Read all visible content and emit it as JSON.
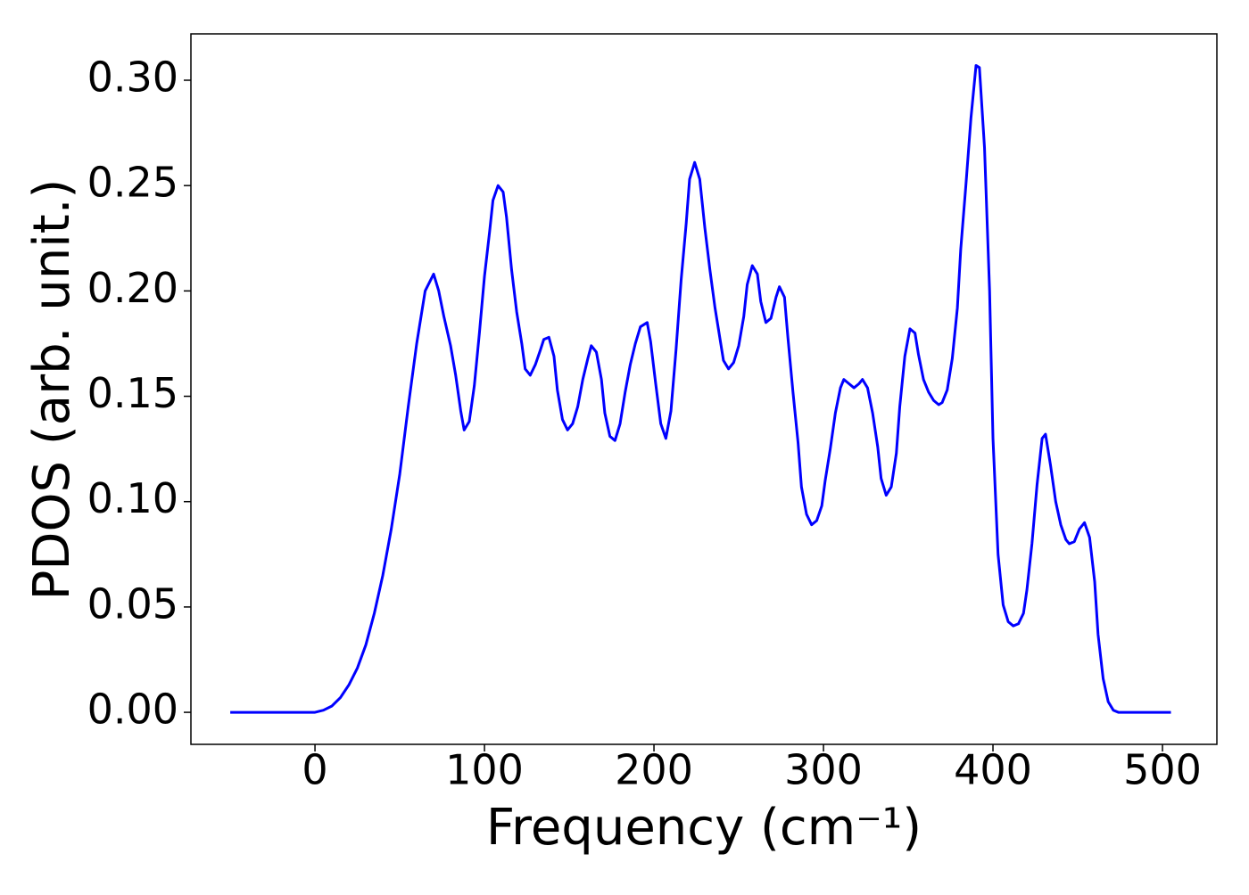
{
  "chart_data": {
    "type": "line",
    "xlabel": "Frequency (cm⁻¹)",
    "ylabel": "PDOS (arb. unit.)",
    "xlim": [
      -73.2,
      532.1
    ],
    "ylim": [
      -0.0152,
      0.322
    ],
    "xticks": [
      0,
      100,
      200,
      300,
      400,
      500
    ],
    "yticks": [
      {
        "value": 0,
        "label": "0.00"
      },
      0.05,
      {
        "value": 0.1,
        "label": "0.10"
      },
      0.15,
      {
        "value": 0.2,
        "label": "0.20"
      },
      0.25,
      {
        "value": 0.3,
        "label": "0.30"
      }
    ],
    "grid": false,
    "series": [
      {
        "color": "#0000ff",
        "x": [
          -50,
          0,
          5,
          10,
          15,
          20,
          25,
          30,
          35,
          40,
          45,
          50,
          55,
          60,
          65,
          70,
          73,
          76,
          80,
          83,
          86,
          88,
          91,
          94,
          97,
          100,
          103,
          105,
          108,
          111,
          113,
          116,
          119,
          122,
          124,
          127,
          130,
          133,
          135,
          138,
          141,
          143,
          146,
          149,
          152,
          155,
          158,
          161,
          163,
          166,
          169,
          171,
          174,
          177,
          180,
          183,
          186,
          189,
          192,
          196,
          198,
          201,
          204,
          207,
          210,
          213,
          216,
          219,
          221,
          224,
          227,
          230,
          233,
          236,
          239,
          241,
          244,
          247,
          250,
          253,
          255,
          258,
          261,
          263,
          266,
          269,
          272,
          274,
          277,
          279,
          282,
          285,
          287,
          290,
          293,
          296,
          299,
          301,
          304,
          307,
          310,
          312,
          315,
          318,
          321,
          323,
          326,
          329,
          332,
          334,
          337,
          340,
          343,
          345,
          348,
          351,
          354,
          356,
          359,
          362,
          365,
          368,
          370,
          373,
          376,
          379,
          381,
          384,
          387,
          390,
          392,
          395,
          398,
          400,
          403,
          406,
          409,
          412,
          415,
          418,
          420,
          423,
          426,
          429,
          431,
          434,
          437,
          440,
          443,
          445,
          448,
          451,
          454,
          457,
          460,
          462,
          465,
          468,
          471,
          474,
          505
        ],
        "values": [
          0,
          0,
          0.001,
          0.003,
          0.007,
          0.013,
          0.021,
          0.032,
          0.047,
          0.065,
          0.087,
          0.113,
          0.145,
          0.175,
          0.2,
          0.208,
          0.2,
          0.188,
          0.174,
          0.16,
          0.143,
          0.134,
          0.138,
          0.155,
          0.18,
          0.207,
          0.228,
          0.243,
          0.25,
          0.247,
          0.235,
          0.21,
          0.19,
          0.175,
          0.163,
          0.16,
          0.165,
          0.172,
          0.177,
          0.178,
          0.169,
          0.153,
          0.139,
          0.134,
          0.137,
          0.145,
          0.158,
          0.168,
          0.174,
          0.171,
          0.158,
          0.142,
          0.131,
          0.129,
          0.137,
          0.152,
          0.165,
          0.175,
          0.183,
          0.185,
          0.176,
          0.156,
          0.137,
          0.13,
          0.143,
          0.172,
          0.205,
          0.232,
          0.253,
          0.261,
          0.253,
          0.23,
          0.21,
          0.192,
          0.177,
          0.167,
          0.163,
          0.166,
          0.174,
          0.188,
          0.203,
          0.212,
          0.208,
          0.195,
          0.185,
          0.187,
          0.197,
          0.202,
          0.197,
          0.178,
          0.152,
          0.128,
          0.107,
          0.094,
          0.089,
          0.091,
          0.098,
          0.11,
          0.125,
          0.142,
          0.154,
          0.158,
          0.156,
          0.154,
          0.156,
          0.158,
          0.154,
          0.142,
          0.126,
          0.111,
          0.103,
          0.107,
          0.123,
          0.145,
          0.169,
          0.182,
          0.18,
          0.17,
          0.158,
          0.152,
          0.148,
          0.146,
          0.147,
          0.153,
          0.168,
          0.192,
          0.22,
          0.25,
          0.282,
          0.307,
          0.306,
          0.268,
          0.2,
          0.13,
          0.075,
          0.051,
          0.043,
          0.041,
          0.042,
          0.047,
          0.058,
          0.08,
          0.108,
          0.13,
          0.132,
          0.117,
          0.1,
          0.089,
          0.082,
          0.08,
          0.081,
          0.087,
          0.09,
          0.083,
          0.062,
          0.037,
          0.016,
          0.005,
          0.001,
          0,
          0
        ]
      }
    ]
  }
}
